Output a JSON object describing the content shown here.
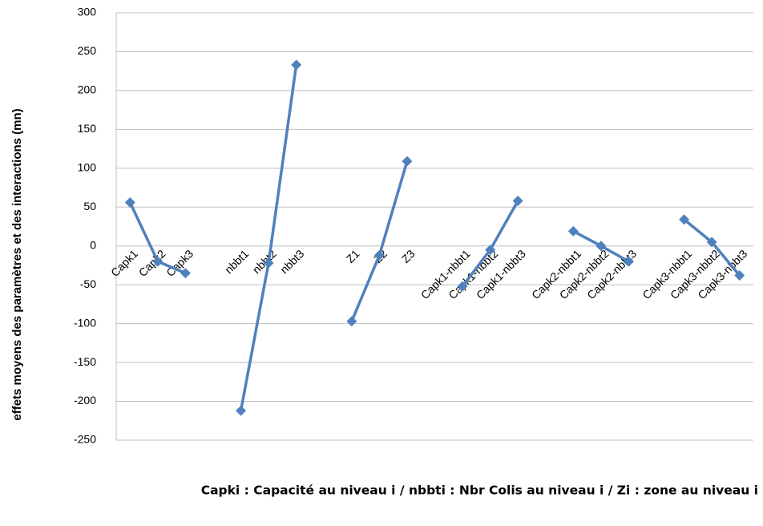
{
  "chart_data": {
    "type": "line",
    "ylabel": "effets moyens des paramètres et des interactions (mn)",
    "note": "Capki : Capacité au niveau i  /  nbbti : Nbr Colis au niveau i  /  Zi : zone au niveau i",
    "categories": [
      "Capk1",
      "Capk2",
      "Capk3",
      null,
      "nbbt1",
      "nbbt2",
      "nbbt3",
      null,
      "Z1",
      "Z2",
      "Z3",
      null,
      "Capk1-nbbt1",
      "Capk1-nbbt2",
      "Capk1-nbbt3",
      null,
      "Capk2-nbbt1",
      "Capk2-nbbt2",
      "Capk2-nbbt3",
      null,
      "Capk3-nbbt1",
      "Capk3-nbbt2",
      "Capk3-nbbt3"
    ],
    "values": [
      56,
      -20,
      -35,
      null,
      -212,
      -22,
      233,
      null,
      -97,
      -12,
      109,
      null,
      -52,
      -5,
      58,
      null,
      19,
      0,
      -20,
      null,
      34,
      5,
      -38
    ],
    "color": "#4f81bd",
    "ylim": [
      -250,
      300
    ],
    "yticks": [
      -250,
      -200,
      -150,
      -100,
      -50,
      0,
      50,
      100,
      150,
      200,
      250,
      300
    ],
    "grid": true
  }
}
